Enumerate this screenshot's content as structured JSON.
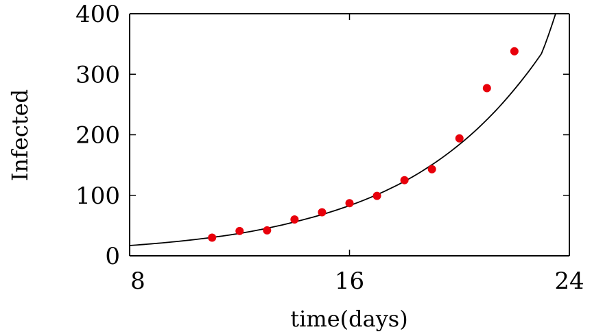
{
  "chart_data": {
    "type": "scatter",
    "title": "",
    "xlabel": "time(days)",
    "ylabel": "Infected",
    "xlim": [
      8,
      24
    ],
    "ylim": [
      0,
      400
    ],
    "xticks": [
      8,
      16,
      24
    ],
    "yticks": [
      0,
      100,
      200,
      300,
      400
    ],
    "grid": false,
    "legend": "none",
    "colors": {
      "points": "#e8000b",
      "fit_line": "#000000",
      "axes": "#000000"
    },
    "points": {
      "x": [
        11,
        12,
        13,
        14,
        15,
        16,
        17,
        18,
        19,
        20,
        21,
        22
      ],
      "y": [
        30,
        41,
        42,
        60,
        72,
        87,
        99,
        125,
        143,
        194,
        277,
        338
      ]
    },
    "fit_curve": {
      "x": [
        8,
        10,
        12,
        14,
        16,
        18,
        20,
        22,
        23,
        23.5
      ],
      "y": [
        17,
        25,
        37,
        56,
        83,
        123,
        184,
        275,
        335,
        400
      ]
    }
  }
}
